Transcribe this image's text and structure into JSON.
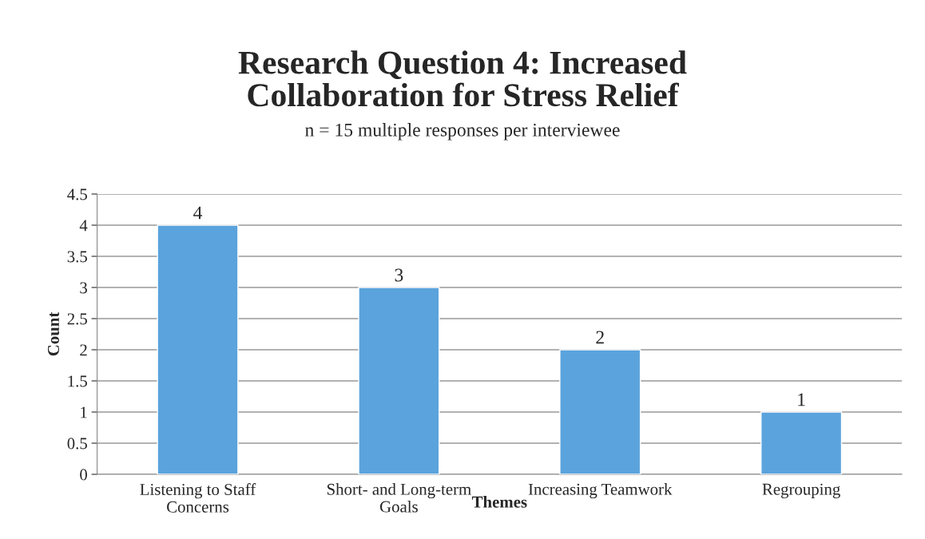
{
  "chart_data": {
    "type": "bar",
    "title": "Research Question 4: Increased\nCollaboration for Stress Relief",
    "subtitle": "n = 15 multiple responses per interviewee",
    "xlabel": "Themes",
    "ylabel": "Count",
    "categories": [
      "Listening to Staff\nConcerns",
      "Short- and Long-term\nGoals",
      "Increasing Teamwork",
      "Regrouping"
    ],
    "values": [
      4,
      3,
      2,
      1
    ],
    "color": "#5ba3dc",
    "ylim": [
      0,
      4.5
    ],
    "yticks": [
      0,
      0.5,
      1,
      1.5,
      2,
      2.5,
      3,
      3.5,
      4,
      4.5
    ],
    "grid": "y",
    "data_labels": true
  }
}
